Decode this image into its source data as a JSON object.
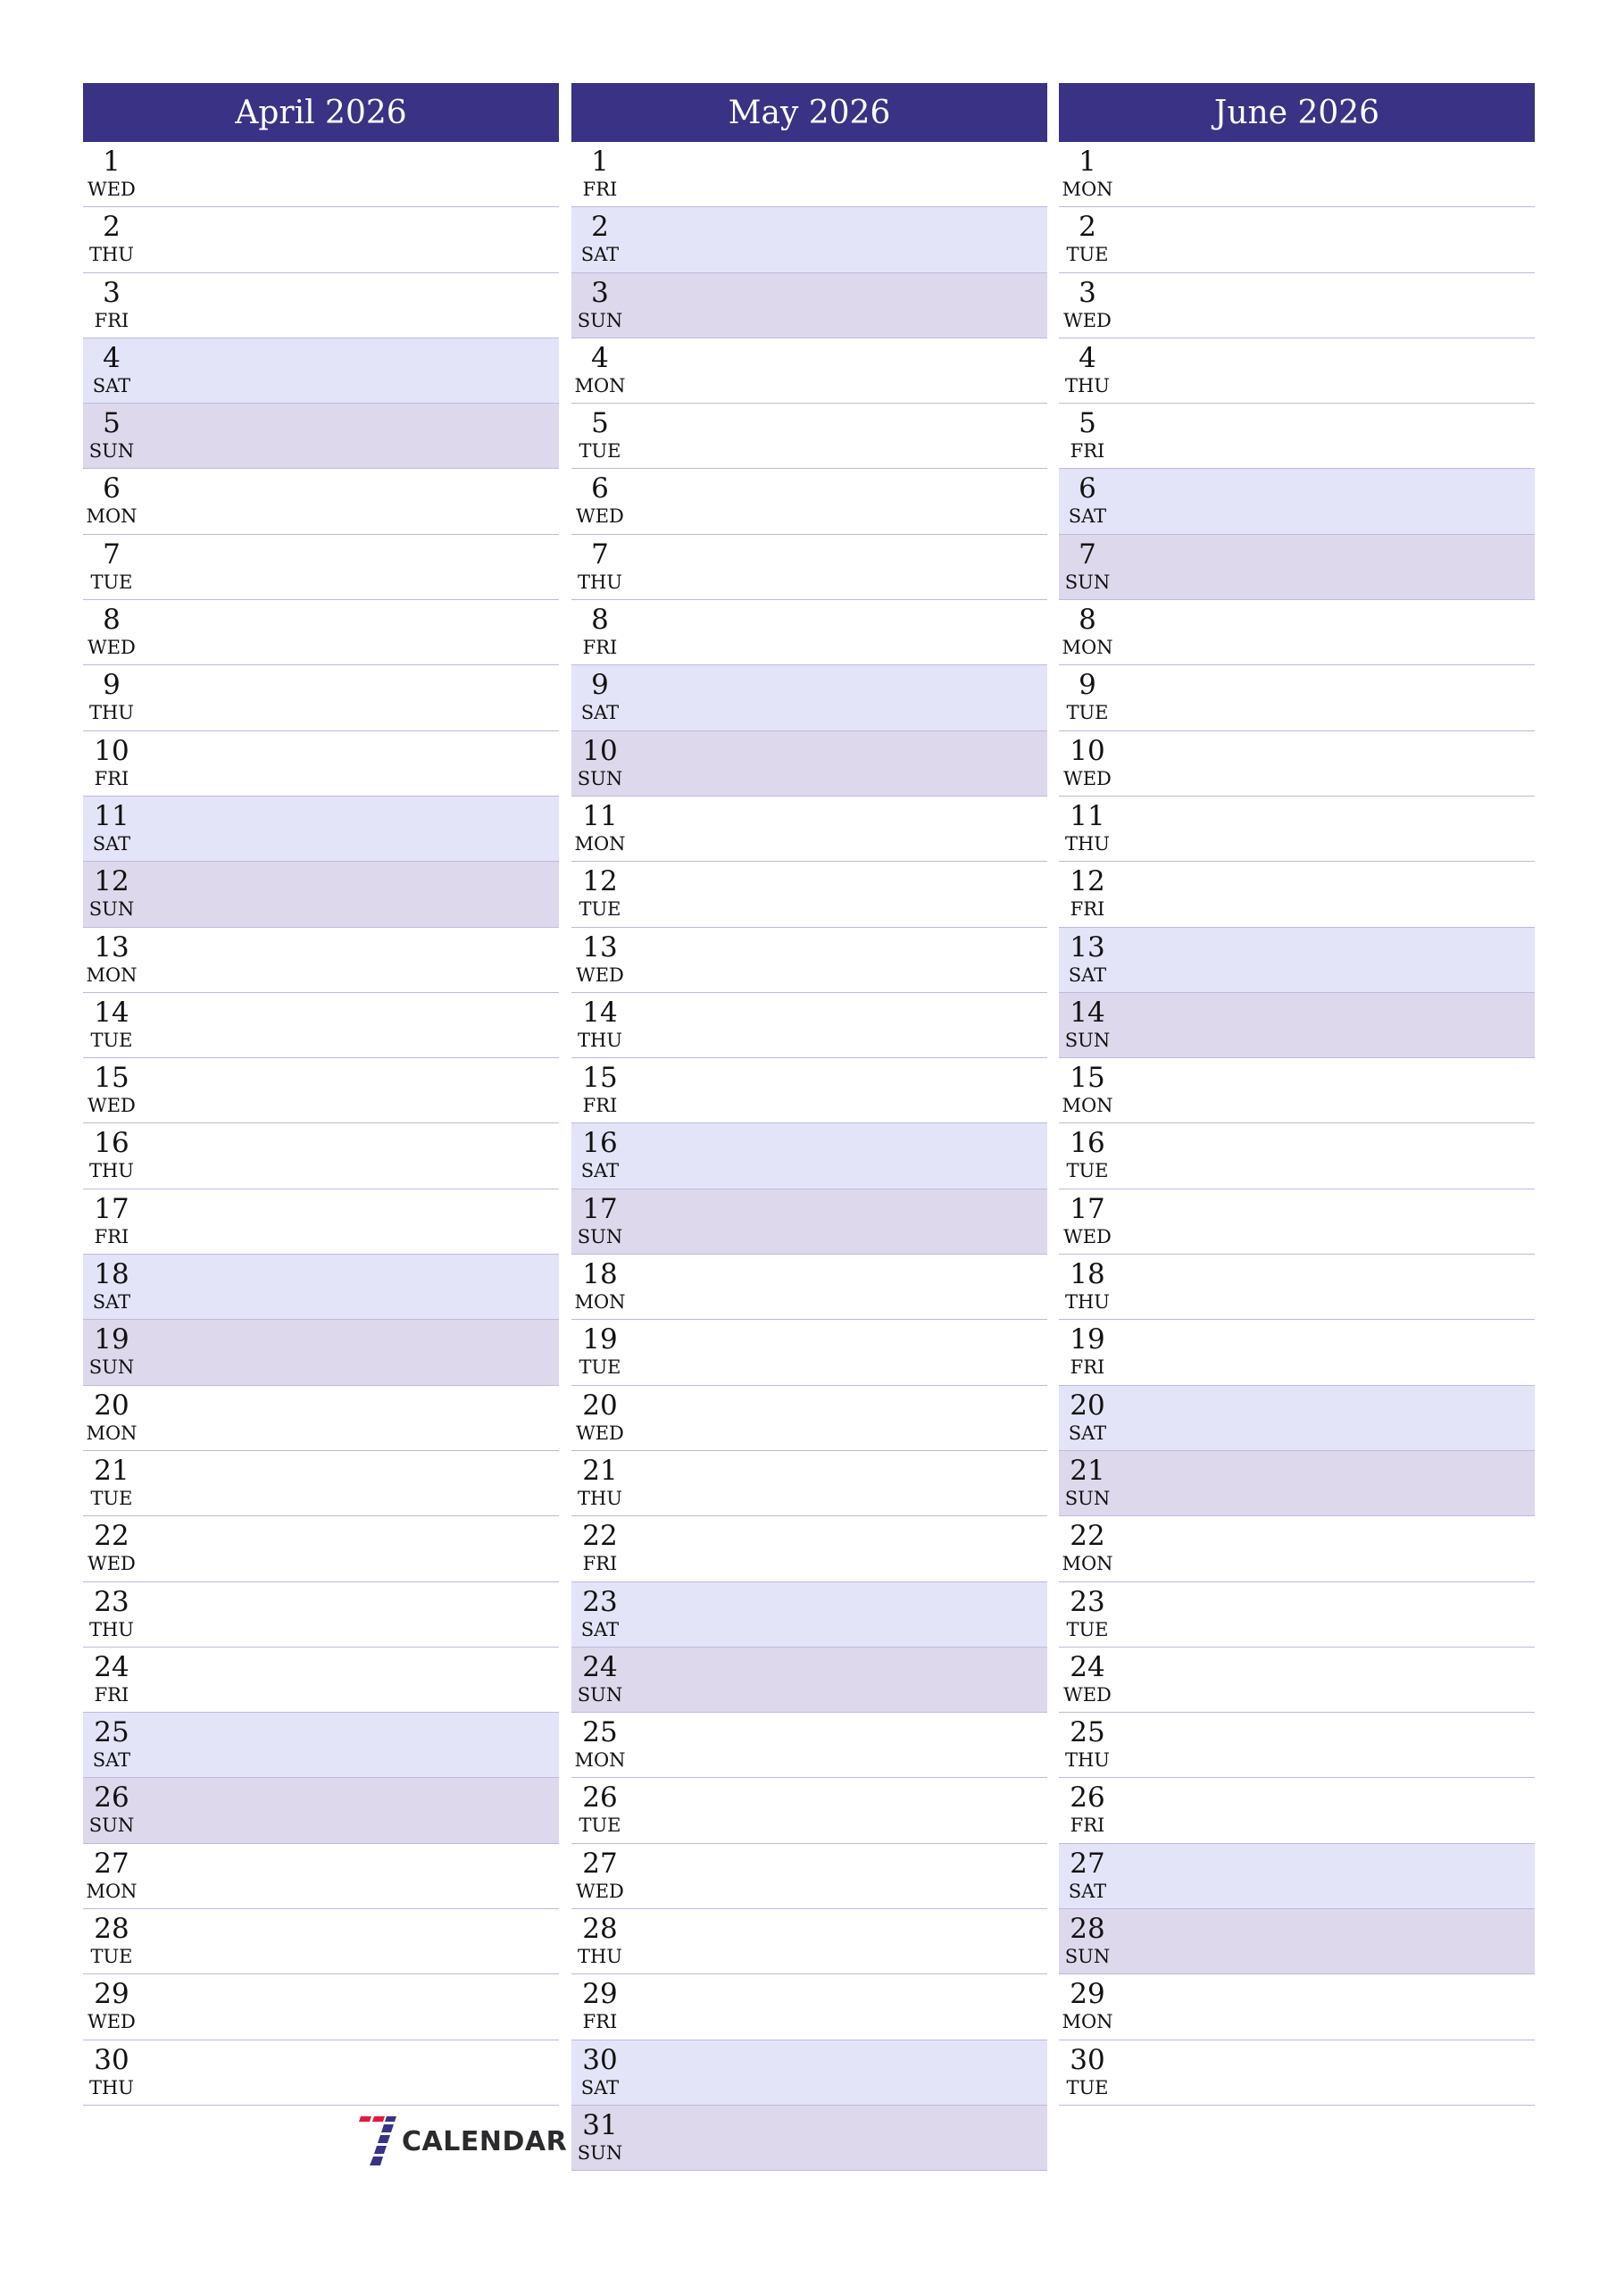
{
  "colors": {
    "header": "#3a3284",
    "saturday": "#e4e4f8",
    "sunday": "#ddd8ec",
    "divider": "#bdb9dc"
  },
  "logo": {
    "text": "CALENDAR",
    "mark": "7"
  },
  "months": [
    {
      "title": "April 2026",
      "days": [
        {
          "d": "1",
          "w": "WED"
        },
        {
          "d": "2",
          "w": "THU"
        },
        {
          "d": "3",
          "w": "FRI"
        },
        {
          "d": "4",
          "w": "SAT"
        },
        {
          "d": "5",
          "w": "SUN"
        },
        {
          "d": "6",
          "w": "MON"
        },
        {
          "d": "7",
          "w": "TUE"
        },
        {
          "d": "8",
          "w": "WED"
        },
        {
          "d": "9",
          "w": "THU"
        },
        {
          "d": "10",
          "w": "FRI"
        },
        {
          "d": "11",
          "w": "SAT"
        },
        {
          "d": "12",
          "w": "SUN"
        },
        {
          "d": "13",
          "w": "MON"
        },
        {
          "d": "14",
          "w": "TUE"
        },
        {
          "d": "15",
          "w": "WED"
        },
        {
          "d": "16",
          "w": "THU"
        },
        {
          "d": "17",
          "w": "FRI"
        },
        {
          "d": "18",
          "w": "SAT"
        },
        {
          "d": "19",
          "w": "SUN"
        },
        {
          "d": "20",
          "w": "MON"
        },
        {
          "d": "21",
          "w": "TUE"
        },
        {
          "d": "22",
          "w": "WED"
        },
        {
          "d": "23",
          "w": "THU"
        },
        {
          "d": "24",
          "w": "FRI"
        },
        {
          "d": "25",
          "w": "SAT"
        },
        {
          "d": "26",
          "w": "SUN"
        },
        {
          "d": "27",
          "w": "MON"
        },
        {
          "d": "28",
          "w": "TUE"
        },
        {
          "d": "29",
          "w": "WED"
        },
        {
          "d": "30",
          "w": "THU"
        }
      ]
    },
    {
      "title": "May 2026",
      "days": [
        {
          "d": "1",
          "w": "FRI"
        },
        {
          "d": "2",
          "w": "SAT"
        },
        {
          "d": "3",
          "w": "SUN"
        },
        {
          "d": "4",
          "w": "MON"
        },
        {
          "d": "5",
          "w": "TUE"
        },
        {
          "d": "6",
          "w": "WED"
        },
        {
          "d": "7",
          "w": "THU"
        },
        {
          "d": "8",
          "w": "FRI"
        },
        {
          "d": "9",
          "w": "SAT"
        },
        {
          "d": "10",
          "w": "SUN"
        },
        {
          "d": "11",
          "w": "MON"
        },
        {
          "d": "12",
          "w": "TUE"
        },
        {
          "d": "13",
          "w": "WED"
        },
        {
          "d": "14",
          "w": "THU"
        },
        {
          "d": "15",
          "w": "FRI"
        },
        {
          "d": "16",
          "w": "SAT"
        },
        {
          "d": "17",
          "w": "SUN"
        },
        {
          "d": "18",
          "w": "MON"
        },
        {
          "d": "19",
          "w": "TUE"
        },
        {
          "d": "20",
          "w": "WED"
        },
        {
          "d": "21",
          "w": "THU"
        },
        {
          "d": "22",
          "w": "FRI"
        },
        {
          "d": "23",
          "w": "SAT"
        },
        {
          "d": "24",
          "w": "SUN"
        },
        {
          "d": "25",
          "w": "MON"
        },
        {
          "d": "26",
          "w": "TUE"
        },
        {
          "d": "27",
          "w": "WED"
        },
        {
          "d": "28",
          "w": "THU"
        },
        {
          "d": "29",
          "w": "FRI"
        },
        {
          "d": "30",
          "w": "SAT"
        },
        {
          "d": "31",
          "w": "SUN"
        }
      ]
    },
    {
      "title": "June 2026",
      "days": [
        {
          "d": "1",
          "w": "MON"
        },
        {
          "d": "2",
          "w": "TUE"
        },
        {
          "d": "3",
          "w": "WED"
        },
        {
          "d": "4",
          "w": "THU"
        },
        {
          "d": "5",
          "w": "FRI"
        },
        {
          "d": "6",
          "w": "SAT"
        },
        {
          "d": "7",
          "w": "SUN"
        },
        {
          "d": "8",
          "w": "MON"
        },
        {
          "d": "9",
          "w": "TUE"
        },
        {
          "d": "10",
          "w": "WED"
        },
        {
          "d": "11",
          "w": "THU"
        },
        {
          "d": "12",
          "w": "FRI"
        },
        {
          "d": "13",
          "w": "SAT"
        },
        {
          "d": "14",
          "w": "SUN"
        },
        {
          "d": "15",
          "w": "MON"
        },
        {
          "d": "16",
          "w": "TUE"
        },
        {
          "d": "17",
          "w": "WED"
        },
        {
          "d": "18",
          "w": "THU"
        },
        {
          "d": "19",
          "w": "FRI"
        },
        {
          "d": "20",
          "w": "SAT"
        },
        {
          "d": "21",
          "w": "SUN"
        },
        {
          "d": "22",
          "w": "MON"
        },
        {
          "d": "23",
          "w": "TUE"
        },
        {
          "d": "24",
          "w": "WED"
        },
        {
          "d": "25",
          "w": "THU"
        },
        {
          "d": "26",
          "w": "FRI"
        },
        {
          "d": "27",
          "w": "SAT"
        },
        {
          "d": "28",
          "w": "SUN"
        },
        {
          "d": "29",
          "w": "MON"
        },
        {
          "d": "30",
          "w": "TUE"
        }
      ]
    }
  ]
}
